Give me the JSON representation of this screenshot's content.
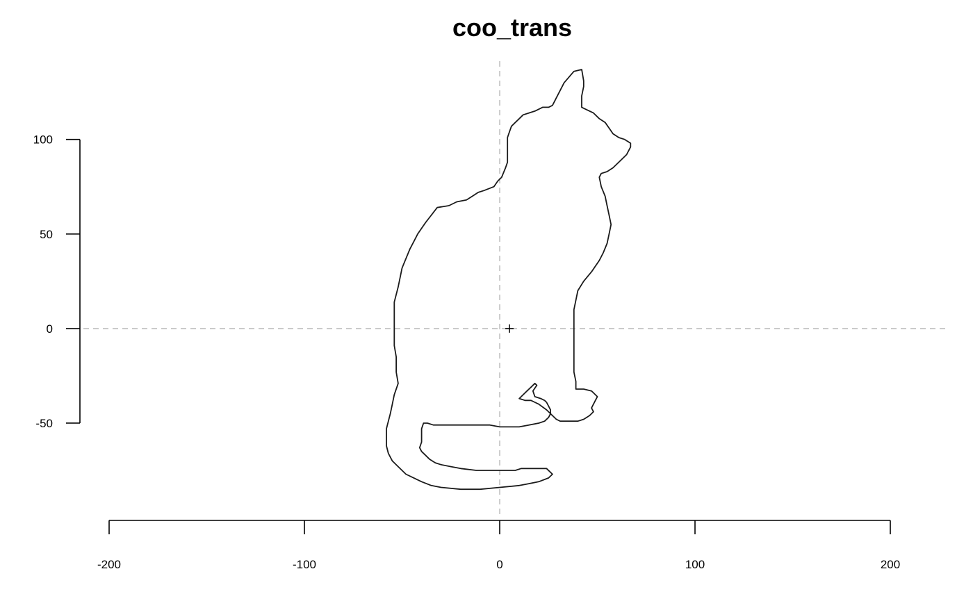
{
  "chart_data": {
    "type": "line",
    "title": "coo_trans",
    "xlabel": "",
    "ylabel": "",
    "xlim": [
      -200,
      200
    ],
    "ylim": [
      -93,
      137
    ],
    "x_ticks": [
      -200,
      -100,
      0,
      100,
      200
    ],
    "x_tick_labels": [
      "-200",
      "-100",
      "0",
      "100",
      "200"
    ],
    "y_ticks": [
      -50,
      0,
      50,
      100
    ],
    "y_tick_labels": [
      "-50",
      "0",
      "50",
      "100"
    ],
    "grid": false,
    "reference_lines": {
      "x": 0,
      "y": 0,
      "style": "dashed",
      "color": "#bdbdbd"
    },
    "centroid": {
      "x": 5,
      "y": 0,
      "marker": "+"
    },
    "series": [
      {
        "shape": "cat-outline",
        "color": "#1a1a1a",
        "closed": true,
        "points": [
          [
            42,
            137
          ],
          [
            38,
            136
          ],
          [
            33,
            130
          ],
          [
            31,
            126
          ],
          [
            29,
            122
          ],
          [
            28,
            120
          ],
          [
            27,
            118
          ],
          [
            25,
            117
          ],
          [
            22,
            117
          ],
          [
            20,
            116
          ],
          [
            18,
            115
          ],
          [
            15,
            114
          ],
          [
            12,
            113
          ],
          [
            10,
            111
          ],
          [
            8,
            109
          ],
          [
            6,
            107
          ],
          [
            5,
            104
          ],
          [
            4,
            101
          ],
          [
            4,
            98
          ],
          [
            4,
            95
          ],
          [
            4,
            92
          ],
          [
            4,
            88
          ],
          [
            3,
            85
          ],
          [
            1,
            80
          ],
          [
            -1,
            78
          ],
          [
            -3,
            75
          ],
          [
            -8,
            73
          ],
          [
            -11,
            72
          ],
          [
            -14,
            70
          ],
          [
            -17,
            68
          ],
          [
            -22,
            67
          ],
          [
            -26,
            65
          ],
          [
            -32,
            64
          ],
          [
            -38,
            56
          ],
          [
            -40,
            53
          ],
          [
            -42,
            50
          ],
          [
            -44,
            46
          ],
          [
            -46,
            42
          ],
          [
            -48,
            37
          ],
          [
            -50,
            32
          ],
          [
            -51,
            27
          ],
          [
            -52,
            22
          ],
          [
            -53,
            18
          ],
          [
            -54,
            14
          ],
          [
            -54,
            8
          ],
          [
            -54,
            0
          ],
          [
            -54,
            -9
          ],
          [
            -53,
            -15
          ],
          [
            -53,
            -23
          ],
          [
            -52,
            -29
          ],
          [
            -54,
            -35
          ],
          [
            -55,
            -40
          ],
          [
            -56,
            -45
          ],
          [
            -57,
            -49
          ],
          [
            -58,
            -53
          ],
          [
            -58,
            -58
          ],
          [
            -58,
            -62
          ],
          [
            -57,
            -66
          ],
          [
            -55,
            -70
          ],
          [
            -52,
            -73
          ],
          [
            -48,
            -77
          ],
          [
            -44,
            -79
          ],
          [
            -40,
            -81
          ],
          [
            -35,
            -83
          ],
          [
            -30,
            -84
          ],
          [
            -20,
            -85
          ],
          [
            -10,
            -85
          ],
          [
            0,
            -84
          ],
          [
            10,
            -83
          ],
          [
            15,
            -82
          ],
          [
            20,
            -81
          ],
          [
            25,
            -79
          ],
          [
            27,
            -77
          ],
          [
            24,
            -74
          ],
          [
            11,
            -74
          ],
          [
            8,
            -75
          ],
          [
            -5,
            -75
          ],
          [
            -12,
            -75
          ],
          [
            -20,
            -74
          ],
          [
            -25,
            -73
          ],
          [
            -30,
            -72
          ],
          [
            -33,
            -71
          ],
          [
            -36,
            -69
          ],
          [
            -38,
            -67
          ],
          [
            -40,
            -65
          ],
          [
            -41,
            -63
          ],
          [
            -40,
            -60
          ],
          [
            -40,
            -58
          ],
          [
            -40,
            -53
          ],
          [
            -39,
            -50
          ],
          [
            -37,
            -50
          ],
          [
            -34,
            -51
          ],
          [
            -20,
            -51
          ],
          [
            -5,
            -51
          ],
          [
            0,
            -52
          ],
          [
            10,
            -52
          ],
          [
            15,
            -51
          ],
          [
            20,
            -50
          ],
          [
            23,
            -49
          ],
          [
            25,
            -47
          ],
          [
            26,
            -45
          ],
          [
            26,
            -43
          ],
          [
            25,
            -41
          ],
          [
            24,
            -39
          ],
          [
            23,
            -38
          ],
          [
            21,
            -37
          ],
          [
            18,
            -36
          ],
          [
            17,
            -33
          ],
          [
            19,
            -30
          ],
          [
            18,
            -29
          ],
          [
            16,
            -31
          ],
          [
            14,
            -33
          ],
          [
            12,
            -35
          ],
          [
            10,
            -37
          ],
          [
            13,
            -38
          ],
          [
            16,
            -38
          ],
          [
            18,
            -39
          ],
          [
            20,
            -40
          ],
          [
            24,
            -43
          ],
          [
            27,
            -46
          ],
          [
            29,
            -48
          ],
          [
            31,
            -49
          ],
          [
            40,
            -49
          ],
          [
            43,
            -48
          ],
          [
            46,
            -46
          ],
          [
            48,
            -44
          ],
          [
            47,
            -42
          ],
          [
            48,
            -40
          ],
          [
            49,
            -38
          ],
          [
            50,
            -36
          ],
          [
            48,
            -34
          ],
          [
            47,
            -33
          ],
          [
            43,
            -32
          ],
          [
            39,
            -32
          ],
          [
            39,
            -28
          ],
          [
            38,
            -23
          ],
          [
            38,
            -15
          ],
          [
            38,
            -5
          ],
          [
            38,
            5
          ],
          [
            38,
            10
          ],
          [
            39,
            15
          ],
          [
            40,
            20
          ],
          [
            43,
            25
          ],
          [
            47,
            30
          ],
          [
            51,
            36
          ],
          [
            53,
            40
          ],
          [
            55,
            45
          ],
          [
            56,
            50
          ],
          [
            57,
            55
          ],
          [
            56,
            60
          ],
          [
            55,
            65
          ],
          [
            54,
            70
          ],
          [
            52,
            75
          ],
          [
            51,
            80
          ],
          [
            52,
            82
          ],
          [
            55,
            83
          ],
          [
            58,
            85
          ],
          [
            61,
            88
          ],
          [
            65,
            92
          ],
          [
            67,
            96
          ],
          [
            67,
            98
          ],
          [
            64,
            100
          ],
          [
            61,
            101
          ],
          [
            58,
            103
          ],
          [
            56,
            106
          ],
          [
            54,
            109
          ],
          [
            51,
            111
          ],
          [
            48,
            114
          ],
          [
            44,
            116
          ],
          [
            42,
            117
          ],
          [
            42,
            119
          ],
          [
            42,
            123
          ],
          [
            43,
            128
          ],
          [
            43,
            131
          ],
          [
            42,
            137
          ]
        ]
      }
    ]
  }
}
